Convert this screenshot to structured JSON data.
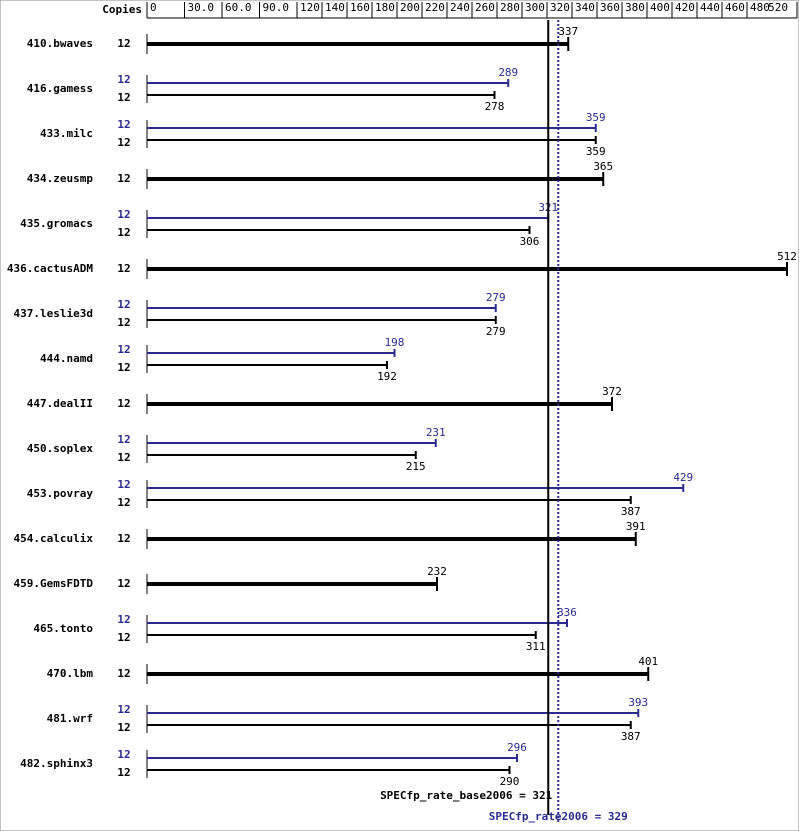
{
  "chart_data": {
    "type": "bar",
    "copies_header": "Copies",
    "xlim": [
      0,
      520
    ],
    "xticks": [
      0,
      {
        "value": 30,
        "label": "30.0"
      },
      {
        "value": 60,
        "label": "60.0"
      },
      {
        "value": 90,
        "label": "90.0"
      },
      120,
      140,
      160,
      180,
      200,
      220,
      240,
      260,
      280,
      300,
      320,
      340,
      360,
      380,
      400,
      420,
      440,
      460,
      480,
      520
    ],
    "peak_color": "#2b2b8f",
    "base_color": "#000000",
    "rows": [
      {
        "name": "410.bwaves",
        "copies": [
          12
        ],
        "values": [
          337
        ]
      },
      {
        "name": "416.gamess",
        "copies": [
          12,
          12
        ],
        "values": [
          289,
          278
        ]
      },
      {
        "name": "433.milc",
        "copies": [
          12,
          12
        ],
        "values": [
          359,
          359
        ]
      },
      {
        "name": "434.zeusmp",
        "copies": [
          12
        ],
        "values": [
          365
        ]
      },
      {
        "name": "435.gromacs",
        "copies": [
          12,
          12
        ],
        "values": [
          321,
          306
        ]
      },
      {
        "name": "436.cactusADM",
        "copies": [
          12
        ],
        "values": [
          512
        ]
      },
      {
        "name": "437.leslie3d",
        "copies": [
          12,
          12
        ],
        "values": [
          279,
          279
        ]
      },
      {
        "name": "444.namd",
        "copies": [
          12,
          12
        ],
        "values": [
          198,
          192
        ]
      },
      {
        "name": "447.dealII",
        "copies": [
          12
        ],
        "values": [
          372
        ]
      },
      {
        "name": "450.soplex",
        "copies": [
          12,
          12
        ],
        "values": [
          231,
          215
        ]
      },
      {
        "name": "453.povray",
        "copies": [
          12,
          12
        ],
        "values": [
          429,
          387
        ]
      },
      {
        "name": "454.calculix",
        "copies": [
          12
        ],
        "values": [
          391
        ]
      },
      {
        "name": "459.GemsFDTD",
        "copies": [
          12
        ],
        "values": [
          232
        ]
      },
      {
        "name": "465.tonto",
        "copies": [
          12,
          12
        ],
        "values": [
          336,
          311
        ]
      },
      {
        "name": "470.lbm",
        "copies": [
          12
        ],
        "values": [
          401
        ]
      },
      {
        "name": "481.wrf",
        "copies": [
          12,
          12
        ],
        "values": [
          393,
          387
        ]
      },
      {
        "name": "482.sphinx3",
        "copies": [
          12,
          12
        ],
        "values": [
          296,
          290
        ]
      }
    ],
    "base_reference": {
      "label": "SPECfp_rate_base2006 = 321",
      "value": 321
    },
    "peak_reference": {
      "label": "SPECfp_rate2006 = 329",
      "value": 329
    }
  }
}
